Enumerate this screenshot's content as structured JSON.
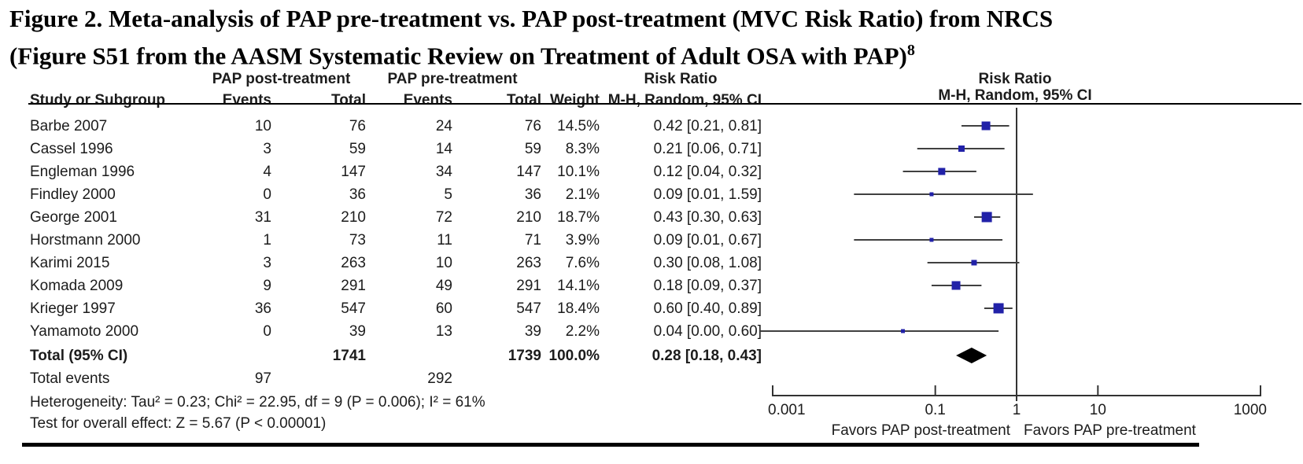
{
  "title": {
    "line1": "Figure 2. Meta-analysis of PAP pre-treatment vs. PAP post-treatment (MVC Risk Ratio) from NRCS",
    "line2": "(Figure S51 from the AASM Systematic Review on Treatment of Adult OSA with PAP)",
    "superscript": "8"
  },
  "table": {
    "group_post": "PAP post-treatment",
    "group_pre": "PAP pre-treatment",
    "group_rr": "Risk Ratio",
    "col_study": "Study or Subgroup",
    "col_events": "Events",
    "col_total": "Total",
    "col_weight": "Weight",
    "col_ci": "M-H, Random, 95% CI"
  },
  "plot_header": {
    "line1": "Risk Ratio",
    "line2": "M-H, Random, 95% CI"
  },
  "stats": {
    "heterogeneity": "Heterogeneity: Tau² = 0.23; Chi² = 22.95, df = 9 (P = 0.006); I² = 61%",
    "overall_effect": "Test for overall effect: Z = 5.67 (P < 0.00001)"
  },
  "colors": {
    "marker": "#2121a8",
    "ci_line": "#404040",
    "axis": "#333333",
    "diamond": "#000000",
    "text": "#1c1c1c"
  },
  "chart_data": {
    "type": "forest",
    "scale": "log",
    "xlim": [
      0.001,
      1000
    ],
    "x_ticks": [
      0.001,
      0.1,
      1,
      10,
      1000
    ],
    "x_tick_labels": [
      "0.001",
      "0.1",
      "1",
      "10",
      "1000"
    ],
    "effect_measure": "Risk Ratio",
    "method": "M-H, Random, 95% CI",
    "favors_left": "Favors PAP post-treatment",
    "favors_right": "Favors PAP pre-treatment",
    "studies": [
      {
        "study": "Barbe 2007",
        "events_post": 10,
        "total_post": 76,
        "events_pre": 24,
        "total_pre": 76,
        "weight": "14.5%",
        "weight_pct": 14.5,
        "rr": 0.42,
        "ci_low": 0.21,
        "ci_high": 0.81,
        "ci_label": "0.42 [0.21, 0.81]"
      },
      {
        "study": "Cassel 1996",
        "events_post": 3,
        "total_post": 59,
        "events_pre": 14,
        "total_pre": 59,
        "weight": "8.3%",
        "weight_pct": 8.3,
        "rr": 0.21,
        "ci_low": 0.06,
        "ci_high": 0.71,
        "ci_label": "0.21 [0.06, 0.71]"
      },
      {
        "study": "Engleman 1996",
        "events_post": 4,
        "total_post": 147,
        "events_pre": 34,
        "total_pre": 147,
        "weight": "10.1%",
        "weight_pct": 10.1,
        "rr": 0.12,
        "ci_low": 0.04,
        "ci_high": 0.32,
        "ci_label": "0.12 [0.04, 0.32]"
      },
      {
        "study": "Findley 2000",
        "events_post": 0,
        "total_post": 36,
        "events_pre": 5,
        "total_pre": 36,
        "weight": "2.1%",
        "weight_pct": 2.1,
        "rr": 0.09,
        "ci_low": 0.01,
        "ci_high": 1.59,
        "ci_label": "0.09 [0.01, 1.59]"
      },
      {
        "study": "George 2001",
        "events_post": 31,
        "total_post": 210,
        "events_pre": 72,
        "total_pre": 210,
        "weight": "18.7%",
        "weight_pct": 18.7,
        "rr": 0.43,
        "ci_low": 0.3,
        "ci_high": 0.63,
        "ci_label": "0.43 [0.30, 0.63]"
      },
      {
        "study": "Horstmann 2000",
        "events_post": 1,
        "total_post": 73,
        "events_pre": 11,
        "total_pre": 71,
        "weight": "3.9%",
        "weight_pct": 3.9,
        "rr": 0.09,
        "ci_low": 0.01,
        "ci_high": 0.67,
        "ci_label": "0.09 [0.01, 0.67]"
      },
      {
        "study": "Karimi 2015",
        "events_post": 3,
        "total_post": 263,
        "events_pre": 10,
        "total_pre": 263,
        "weight": "7.6%",
        "weight_pct": 7.6,
        "rr": 0.3,
        "ci_low": 0.08,
        "ci_high": 1.08,
        "ci_label": "0.30 [0.08, 1.08]"
      },
      {
        "study": "Komada 2009",
        "events_post": 9,
        "total_post": 291,
        "events_pre": 49,
        "total_pre": 291,
        "weight": "14.1%",
        "weight_pct": 14.1,
        "rr": 0.18,
        "ci_low": 0.09,
        "ci_high": 0.37,
        "ci_label": "0.18 [0.09, 0.37]"
      },
      {
        "study": "Krieger 1997",
        "events_post": 36,
        "total_post": 547,
        "events_pre": 60,
        "total_pre": 547,
        "weight": "18.4%",
        "weight_pct": 18.4,
        "rr": 0.6,
        "ci_low": 0.4,
        "ci_high": 0.89,
        "ci_label": "0.60 [0.40, 0.89]"
      },
      {
        "study": "Yamamoto 2000",
        "events_post": 0,
        "total_post": 39,
        "events_pre": 13,
        "total_pre": 39,
        "weight": "2.2%",
        "weight_pct": 2.2,
        "rr": 0.04,
        "ci_low": 0.0,
        "ci_high": 0.6,
        "ci_label": "0.04 [0.00, 0.60]"
      }
    ],
    "total": {
      "label": "Total (95% CI)",
      "total_post": "1741",
      "total_pre": "1739",
      "weight": "100.0%",
      "rr": 0.28,
      "ci_low": 0.18,
      "ci_high": 0.43,
      "ci_label": "0.28 [0.18, 0.43]"
    },
    "total_events": {
      "label": "Total events",
      "post": "97",
      "pre": "292"
    }
  }
}
